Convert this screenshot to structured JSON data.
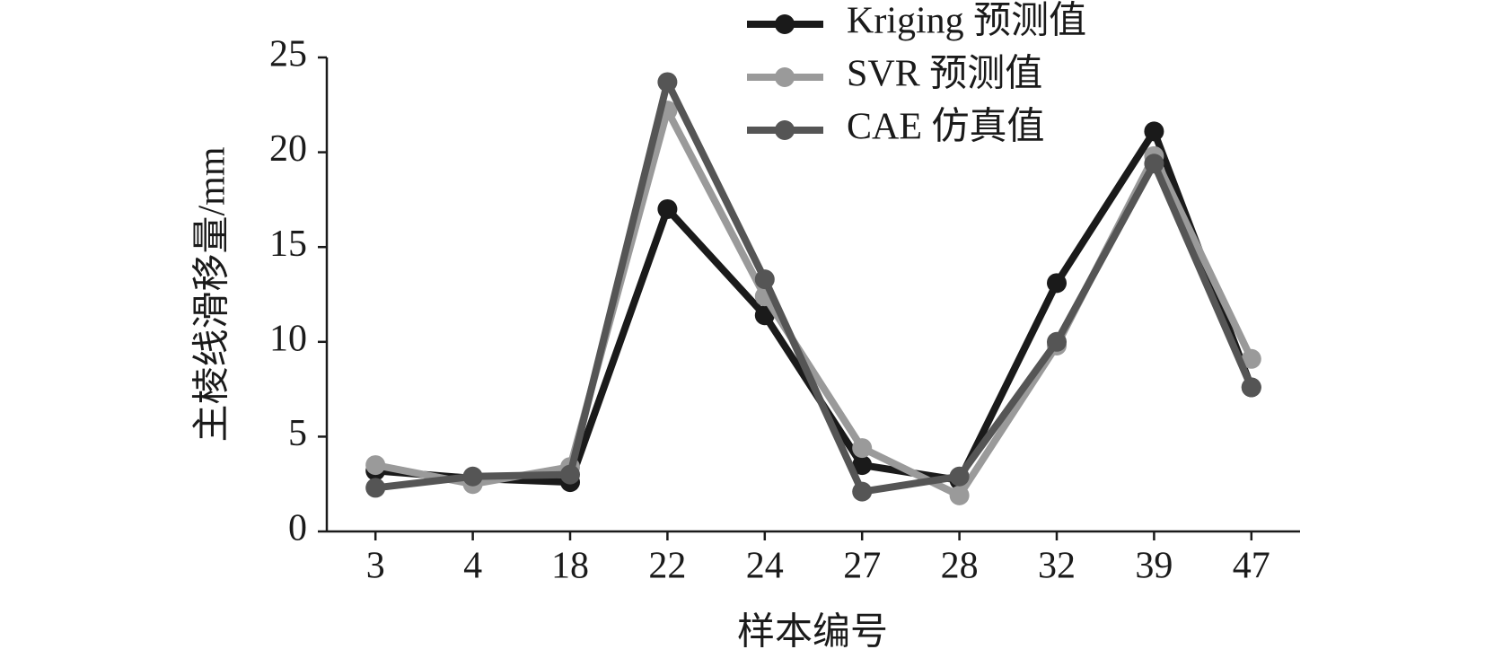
{
  "chart_data": {
    "type": "line",
    "x_label": "样本编号",
    "y_label": "主棱线滑移量/mm",
    "categories": [
      "3",
      "4",
      "18",
      "22",
      "24",
      "27",
      "28",
      "32",
      "39",
      "47"
    ],
    "series": [
      {
        "name": "Kriging 预测值",
        "color": "#1a1a1a",
        "values": [
          3.2,
          2.8,
          2.6,
          17.0,
          11.4,
          3.5,
          2.7,
          13.1,
          21.1,
          7.6
        ]
      },
      {
        "name": "SVR 预测值",
        "color": "#9a9a9a",
        "values": [
          3.5,
          2.5,
          3.4,
          22.2,
          12.4,
          4.4,
          1.9,
          9.8,
          19.8,
          9.1
        ]
      },
      {
        "name": "CAE 仿真值",
        "color": "#555555",
        "values": [
          2.3,
          2.9,
          3.0,
          23.7,
          13.3,
          2.1,
          2.9,
          10.0,
          19.4,
          7.6
        ]
      }
    ],
    "ylim": [
      0,
      25
    ],
    "yticks": [
      0,
      5,
      10,
      15,
      20,
      25
    ]
  }
}
